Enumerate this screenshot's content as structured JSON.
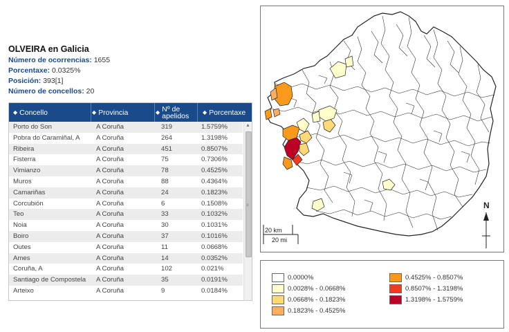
{
  "header": {
    "title": "OLVEIRA en Galicia",
    "ocurrencias_label": "Número de ocorrencias:",
    "ocurrencias_value": "1655",
    "porcentaxe_label": "Porcentaxe:",
    "porcentaxe_value": "0.0325%",
    "posicion_label": "Posición:",
    "posicion_value": "393[1]",
    "concellos_label": "Número de concellos:",
    "concellos_value": "20"
  },
  "table": {
    "columns": [
      "Concello",
      "Provincia",
      "Nº de",
      "apelidos",
      "Porcentaxe"
    ],
    "rows": [
      [
        "Porto do Son",
        "A Coruña",
        "319",
        "1.5759%"
      ],
      [
        "Pobra do Caramiñal, A",
        "A Coruña",
        "264",
        "1.3198%"
      ],
      [
        "Ribeira",
        "A Coruña",
        "451",
        "0.8507%"
      ],
      [
        "Fisterra",
        "A Coruña",
        "75",
        "0.7306%"
      ],
      [
        "Vimianzo",
        "A Coruña",
        "78",
        "0.4525%"
      ],
      [
        "Muros",
        "A Coruña",
        "88",
        "0.4364%"
      ],
      [
        "Camariñas",
        "A Coruña",
        "24",
        "0.1823%"
      ],
      [
        "Corcubión",
        "A Coruña",
        "6",
        "0.1508%"
      ],
      [
        "Teo",
        "A Coruña",
        "33",
        "0.1032%"
      ],
      [
        "Noia",
        "A Coruña",
        "30",
        "0.1031%"
      ],
      [
        "Boiro",
        "A Coruña",
        "37",
        "0.1016%"
      ],
      [
        "Outes",
        "A Coruña",
        "11",
        "0.0668%"
      ],
      [
        "Ames",
        "A Coruña",
        "14",
        "0.0352%"
      ],
      [
        "Coruña, A",
        "A Coruña",
        "102",
        "0.021%"
      ],
      [
        "Santiago de Compostela",
        "A Coruña",
        "35",
        "0.0191%"
      ],
      [
        "Arteixo",
        "A Coruña",
        "9",
        "0.0184%"
      ]
    ]
  },
  "map": {
    "scale_km": "20 km",
    "scale_mi": "20 mi",
    "north": "N",
    "colors": {
      "c0": "#ffffff",
      "c1": "#ffffcc",
      "c2": "#fed976",
      "c3": "#fdae61",
      "c4": "#f99a1c",
      "c5": "#f03b20",
      "c6": "#bd0026"
    }
  },
  "legend": {
    "items": [
      {
        "label": "0.0000%",
        "color": "#ffffff"
      },
      {
        "label": "0.0028% - 0.0668%",
        "color": "#ffffcc"
      },
      {
        "label": "0.0668% - 0.1823%",
        "color": "#fed976"
      },
      {
        "label": "0.1823% - 0.4525%",
        "color": "#fdae61"
      },
      {
        "label": "0.4525% - 0.8507%",
        "color": "#f99a1c"
      },
      {
        "label": "0.8507% - 1.3198%",
        "color": "#f03b20"
      },
      {
        "label": "1.3198% - 1.5759%",
        "color": "#bd0026"
      }
    ]
  }
}
